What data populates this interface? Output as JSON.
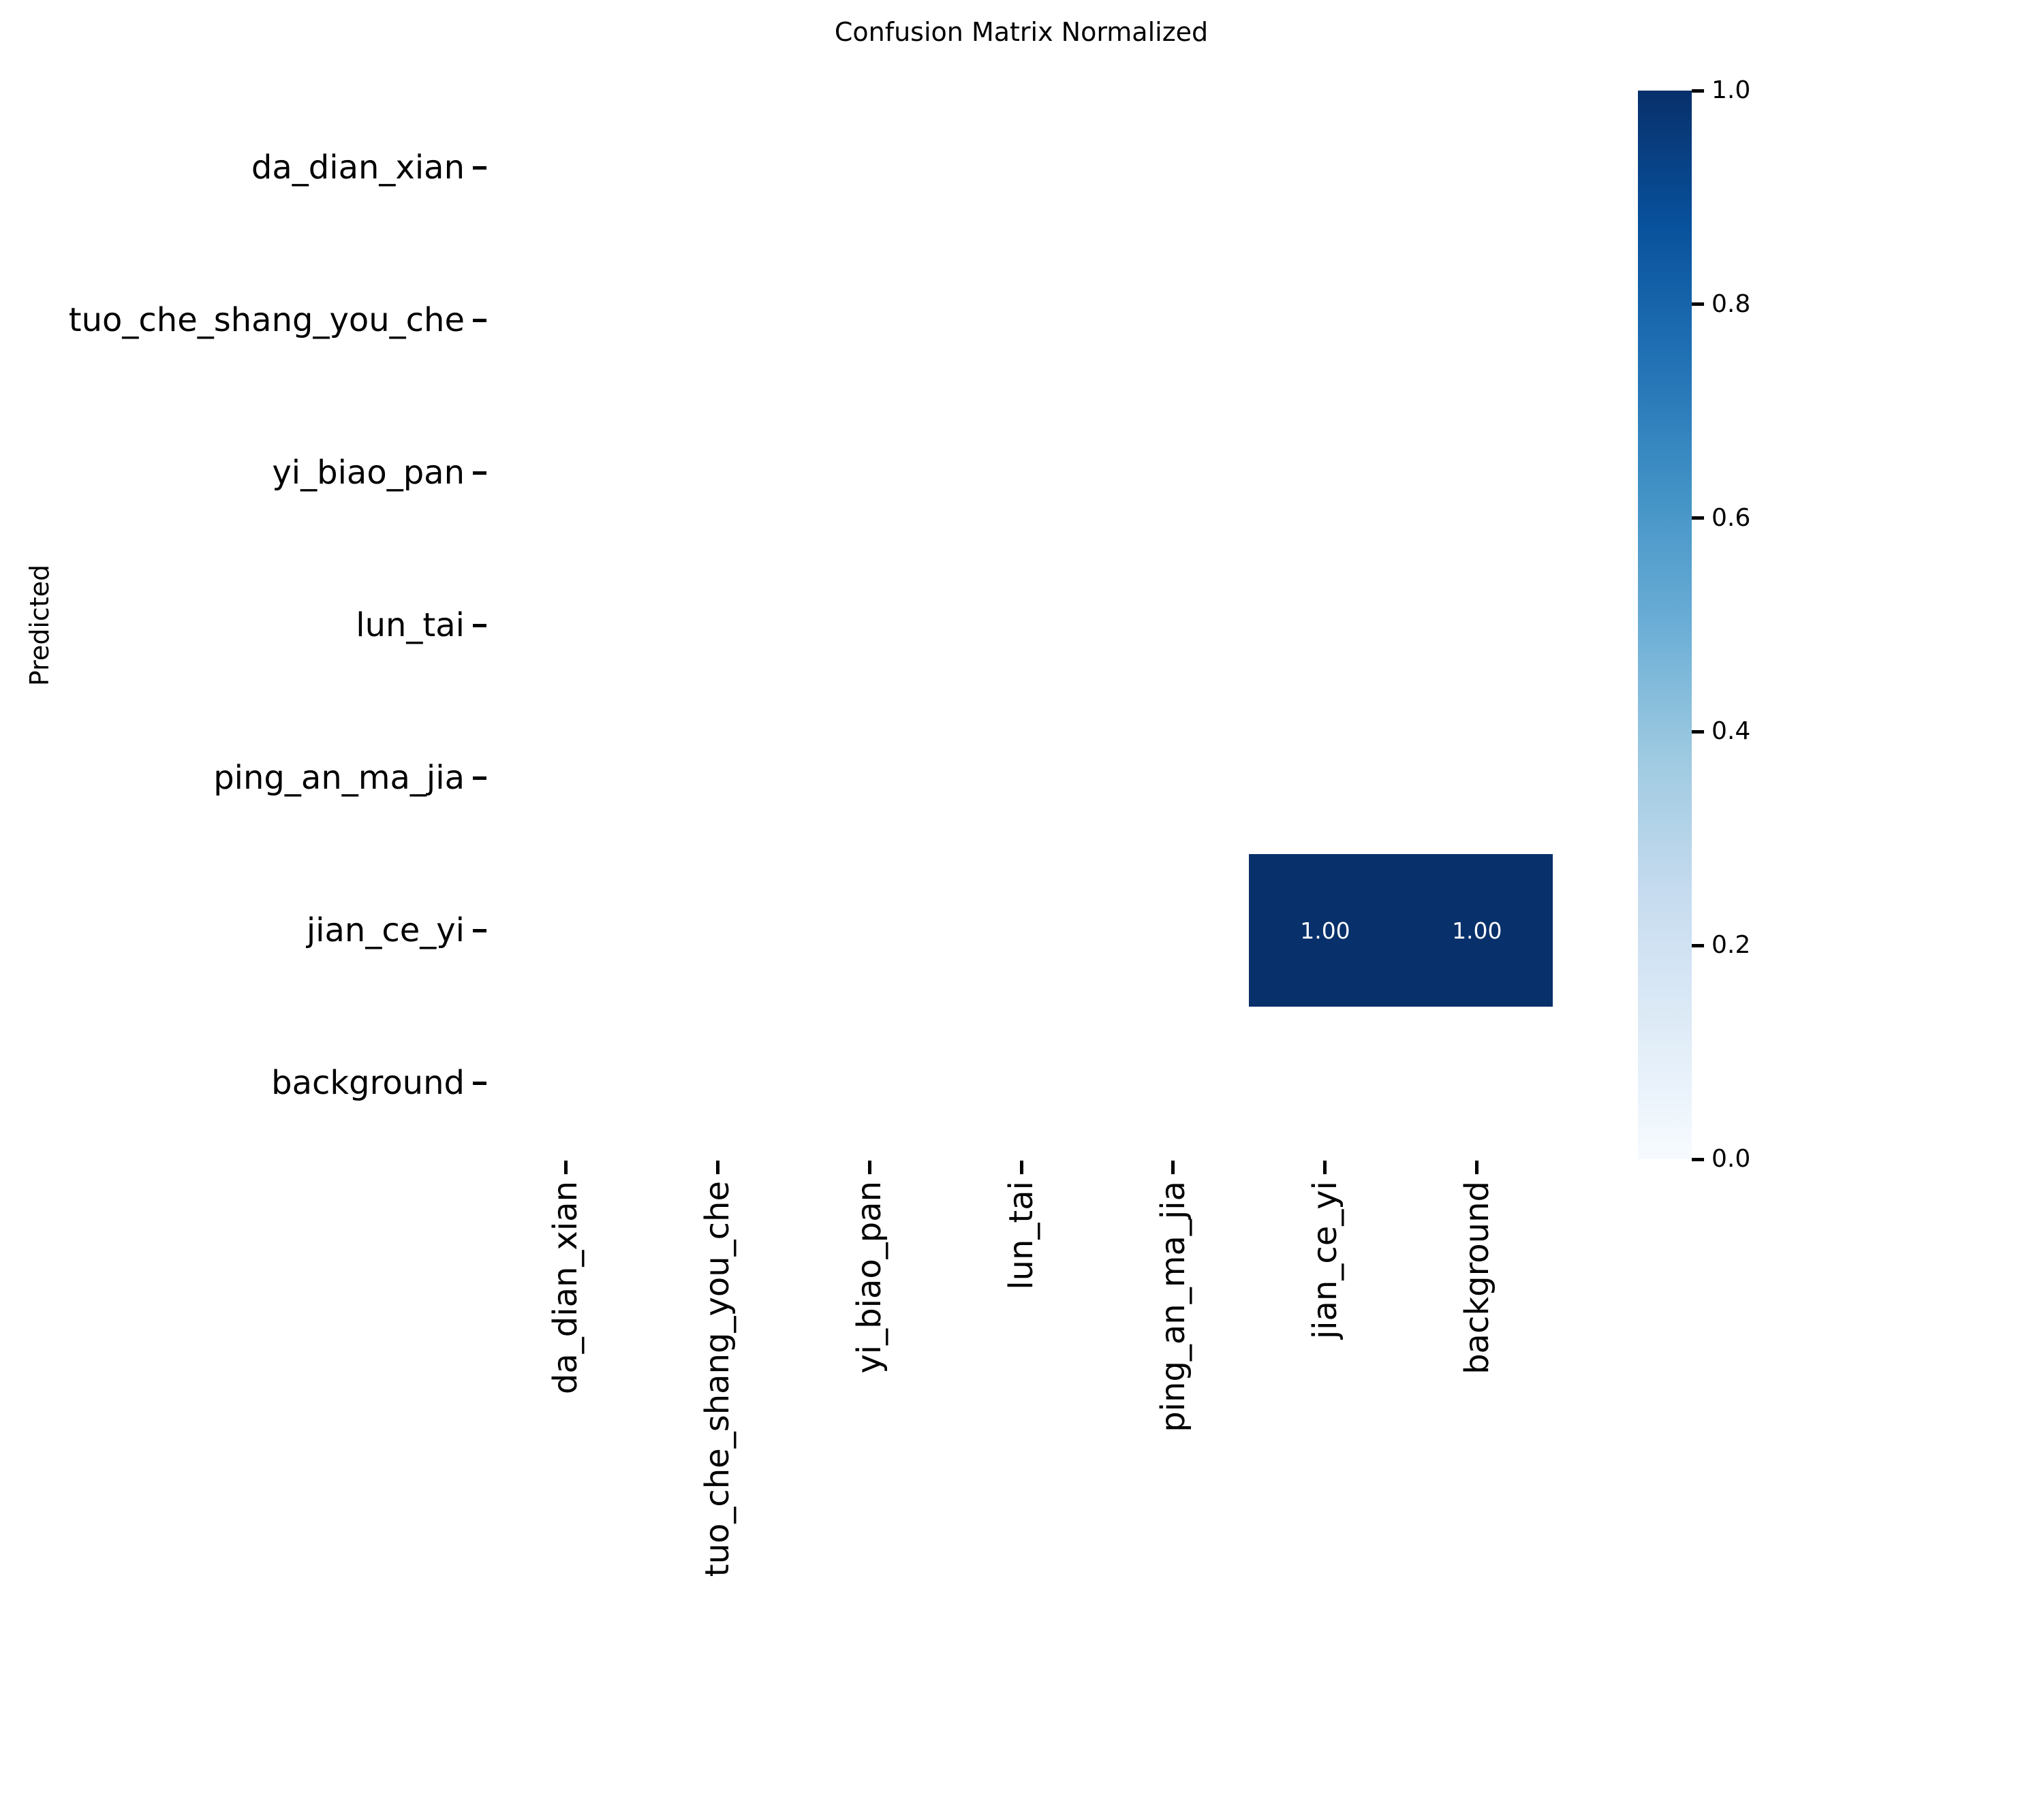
{
  "figure": {
    "background_color": "#ffffff",
    "text_color": "#000000"
  },
  "chart_data": {
    "type": "heatmap",
    "title": "Confusion Matrix Normalized",
    "xlabel": "",
    "ylabel": "Predicted",
    "x_categories": [
      "da_dian_xian",
      "tuo_che_shang_you_che",
      "yi_biao_pan",
      "lun_tai",
      "ping_an_ma_jia",
      "jian_ce_yi",
      "background"
    ],
    "y_categories": [
      "da_dian_xian",
      "tuo_che_shang_you_che",
      "yi_biao_pan",
      "lun_tai",
      "ping_an_ma_jia",
      "jian_ce_yi",
      "background"
    ],
    "matrix": [
      [
        null,
        null,
        null,
        null,
        null,
        null,
        null
      ],
      [
        null,
        null,
        null,
        null,
        null,
        null,
        null
      ],
      [
        null,
        null,
        null,
        null,
        null,
        null,
        null
      ],
      [
        null,
        null,
        null,
        null,
        null,
        null,
        null
      ],
      [
        null,
        null,
        null,
        null,
        null,
        null,
        null
      ],
      [
        null,
        null,
        null,
        null,
        null,
        1.0,
        1.0
      ],
      [
        null,
        null,
        null,
        null,
        null,
        null,
        null
      ]
    ],
    "cells": [
      {
        "row": 5,
        "col": 5,
        "value": 1.0,
        "label": "1.00"
      },
      {
        "row": 5,
        "col": 6,
        "value": 1.0,
        "label": "1.00"
      }
    ],
    "annotation_text_color": "#ffffff",
    "colormap": {
      "name": "Blues",
      "vmin": 0.0,
      "vmax": 1.0,
      "stops": [
        "#f7fbff",
        "#deebf7",
        "#c6dbef",
        "#9ecae1",
        "#6baed6",
        "#4292c6",
        "#2171b5",
        "#08519c",
        "#08306b"
      ]
    },
    "colorbar_tick_labels": [
      "1.0",
      "0.8",
      "0.6",
      "0.4",
      "0.2",
      "0.0"
    ],
    "legend_position": "right-colorbar",
    "grid": false
  }
}
